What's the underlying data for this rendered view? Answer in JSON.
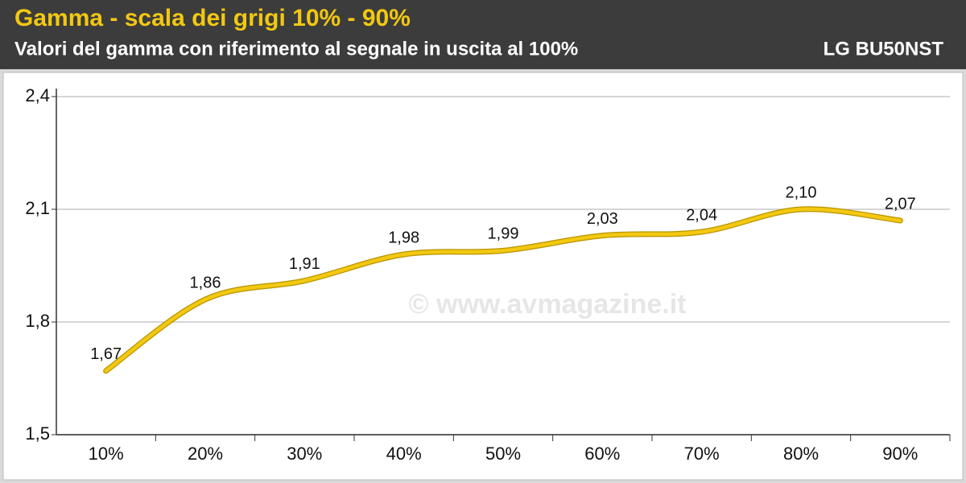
{
  "chart_data": {
    "type": "line",
    "title": "Gamma - scala dei grigi 10% - 90%",
    "subtitle": "Valori del gamma con riferimento al segnale in uscita al 100%",
    "device": "LG BU50NST",
    "watermark": "© www.avmagazine.it",
    "categories": [
      "10%",
      "20%",
      "30%",
      "40%",
      "50%",
      "60%",
      "70%",
      "80%",
      "90%"
    ],
    "values": [
      1.67,
      1.86,
      1.91,
      1.98,
      1.99,
      2.03,
      2.04,
      2.1,
      2.07
    ],
    "value_labels": [
      "1,67",
      "1,86",
      "1,91",
      "1,98",
      "1,99",
      "2,03",
      "2,04",
      "2,10",
      "2,07"
    ],
    "color": "#f2c811",
    "ylim": [
      1.5,
      2.4
    ],
    "yticks": [
      {
        "value": 1.5,
        "label": "1,5"
      },
      {
        "value": 1.8,
        "label": "1,8"
      },
      {
        "value": 2.1,
        "label": "2,1"
      },
      {
        "value": 2.4,
        "label": "2,4"
      }
    ],
    "grid": true
  }
}
